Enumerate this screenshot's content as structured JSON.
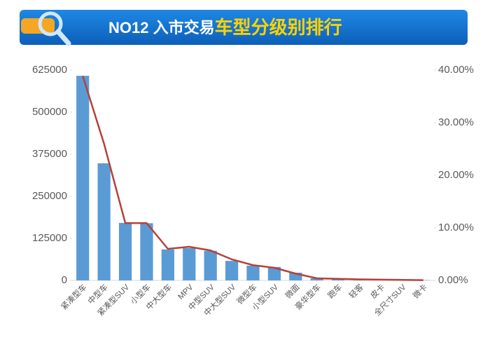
{
  "chart_data": {
    "type": "bar_line",
    "title": [
      "NO12 入市交易",
      "车型分级别排行"
    ],
    "categories": [
      "紧凑型车",
      "中型车",
      "紧凑型SUV",
      "小型车",
      "中大型车",
      "MPV",
      "中型SUV",
      "中大型SUV",
      "微型车",
      "小型SUV",
      "微面",
      "豪华型车",
      "跑车",
      "轻客",
      "皮卡",
      "全尺寸SUV",
      "微卡"
    ],
    "series": [
      {
        "color": "#5b9bd5",
        "values": [
          608000,
          348000,
          171000,
          170000,
          92000,
          96000,
          88000,
          58000,
          44000,
          40000,
          23000,
          6000,
          4000,
          3000,
          2500,
          1500,
          800
        ]
      },
      {
        "color": "#b5413b",
        "axis": "y2",
        "values": [
          38.9,
          26.0,
          10.9,
          10.9,
          6.0,
          6.4,
          5.7,
          4.0,
          2.9,
          2.4,
          1.3,
          0.4,
          0.3,
          0.2,
          0.15,
          0.1,
          0.05
        ]
      }
    ],
    "ylim": [
      0,
      625000
    ],
    "yticks": [
      0,
      125000,
      250000,
      375000,
      500000,
      625000
    ],
    "y2lim": [
      0,
      40
    ],
    "y2ticks": [
      {
        "value": 0,
        "label": "0.00%"
      },
      {
        "value": 10,
        "label": "10.00%"
      },
      {
        "value": 20,
        "label": "20.00%"
      },
      {
        "value": 30,
        "label": "30.00%"
      },
      {
        "value": 40,
        "label": "40.00%"
      }
    ]
  }
}
